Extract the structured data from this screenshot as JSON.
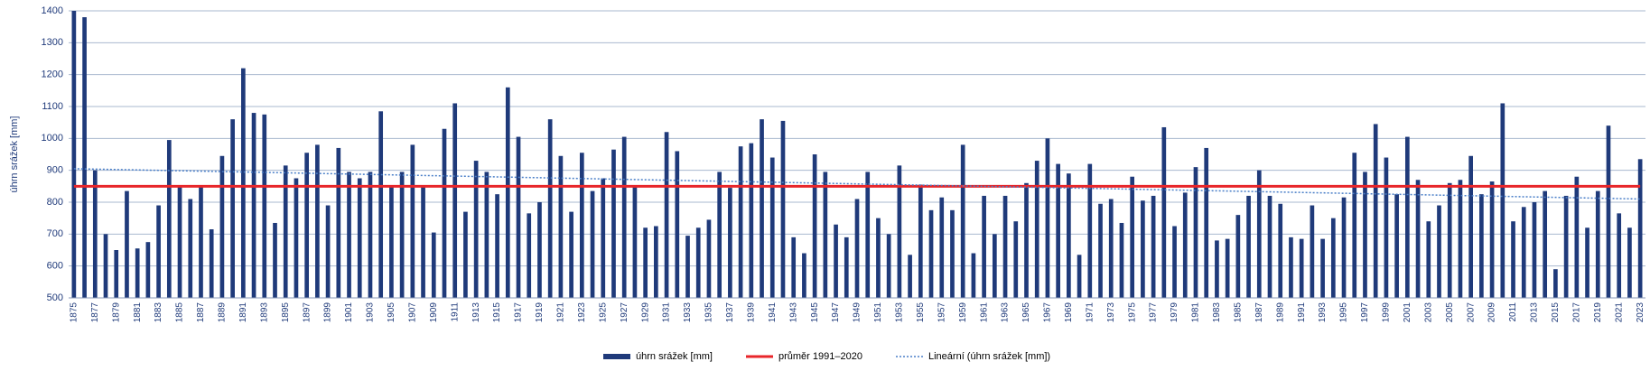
{
  "chart_data": {
    "type": "bar",
    "y_label": "úhrn srážek [mm]",
    "categories": [
      "1875",
      null,
      "1877",
      null,
      "1879",
      null,
      "1881",
      null,
      "1883",
      null,
      "1885",
      null,
      "1887",
      null,
      "1889",
      null,
      "1891",
      null,
      "1893",
      null,
      "1895",
      null,
      "1897",
      null,
      "1899",
      null,
      "1901",
      null,
      "1903",
      null,
      "1905",
      null,
      "1907",
      null,
      "1909",
      null,
      "1911",
      null,
      "1913",
      null,
      "1915",
      null,
      "1917",
      null,
      "1919",
      null,
      "1921",
      null,
      "1923",
      null,
      "1925",
      null,
      "1927",
      null,
      "1929",
      null,
      "1931",
      null,
      "1933",
      null,
      "1935",
      null,
      "1937",
      null,
      "1939",
      null,
      "1941",
      null,
      "1943",
      null,
      "1945",
      null,
      "1947",
      null,
      "1949",
      null,
      "1951",
      null,
      "1953",
      null,
      "1955",
      null,
      "1957",
      null,
      "1959",
      null,
      "1961",
      null,
      "1963",
      null,
      "1965",
      null,
      "1967",
      null,
      "1969",
      null,
      "1971",
      null,
      "1973",
      null,
      "1975",
      null,
      "1977",
      null,
      "1979",
      null,
      "1981",
      null,
      "1983",
      null,
      "1985",
      null,
      "1987",
      null,
      "1989",
      null,
      "1991",
      null,
      "1993",
      null,
      "1995",
      null,
      "1997",
      null,
      "1999",
      null,
      "2001",
      null,
      "2003",
      null,
      "2005",
      null,
      "2007",
      null,
      "2009",
      null,
      "2011",
      null,
      "2013",
      null,
      "2015",
      null,
      "2017",
      null,
      "2019",
      null,
      "2021",
      null,
      "2023"
    ],
    "series": [
      {
        "name": "úhrn srážek [mm]",
        "color": "#1f3a7a",
        "values": [
          1400,
          1380,
          900,
          700,
          650,
          835,
          655,
          675,
          790,
          995,
          850,
          810,
          850,
          715,
          945,
          1060,
          1220,
          1080,
          1075,
          735,
          915,
          875,
          955,
          980,
          790,
          970,
          895,
          875,
          895,
          1085,
          850,
          895,
          980,
          850,
          705,
          1030,
          1110,
          770,
          930,
          895,
          825,
          1160,
          1005,
          765,
          800,
          1060,
          945,
          770,
          955,
          835,
          875,
          965,
          1005,
          850,
          720,
          725,
          1020,
          960,
          695,
          720,
          745,
          895,
          845,
          975,
          985,
          1060,
          940,
          1055,
          690,
          640,
          950,
          895,
          730,
          690,
          810,
          895,
          750,
          700,
          915,
          635,
          855,
          775,
          815,
          775,
          980,
          640,
          820,
          700,
          820,
          740,
          860,
          930,
          1000,
          920,
          890,
          635,
          920,
          795,
          810,
          735,
          880,
          805,
          820,
          1035,
          725,
          830,
          910,
          970,
          680,
          685,
          760,
          820,
          900,
          820,
          795,
          690,
          685,
          790,
          685,
          750,
          815,
          955,
          895,
          1045,
          940,
          825,
          1005,
          870,
          740,
          790,
          860,
          870,
          945,
          825,
          865,
          1110,
          740,
          785,
          800,
          835,
          590,
          820,
          880,
          720,
          835,
          1040,
          765,
          720,
          935
        ]
      },
      {
        "name": "průměr 1991–2020",
        "color": "#e8262a",
        "value": 850
      },
      {
        "name": "Lineární (úhrn srážek [mm])",
        "color": "#4a7fc8",
        "start": 905,
        "end": 810
      }
    ],
    "ylim": [
      500,
      1400
    ],
    "yticks": [
      500,
      600,
      700,
      800,
      900,
      1000,
      1100,
      1200,
      1300,
      1400
    ],
    "grid": true
  }
}
